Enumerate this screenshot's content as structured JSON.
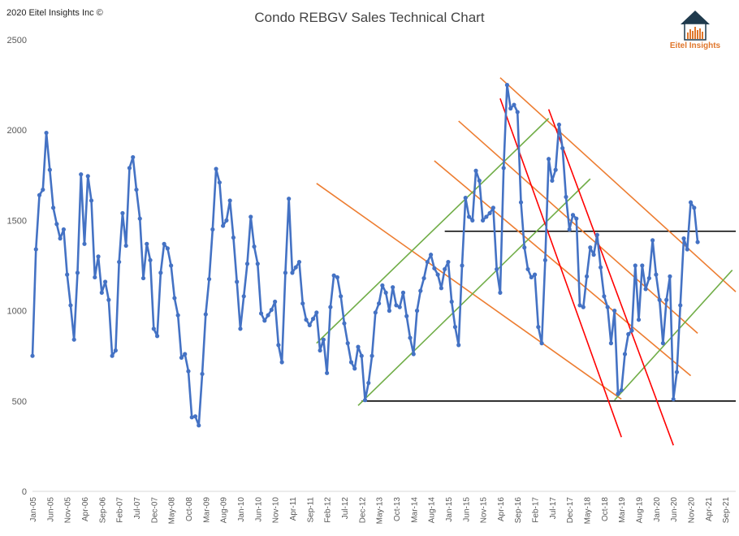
{
  "copyright": "2020 Eitel Insights Inc ©",
  "logo_text": "Eitel Insights",
  "chart_data": {
    "type": "line",
    "title": "Condo REBGV Sales Technical Chart",
    "ylim": [
      0,
      2500
    ],
    "yticks": [
      0,
      500,
      1000,
      1500,
      2000,
      2500
    ],
    "grid": false,
    "x_start": "Jan-05",
    "x_end": "Dec-21",
    "x_tick_labels": [
      "Jan-05",
      "Jun-05",
      "Nov-05",
      "Apr-06",
      "Sep-06",
      "Feb-07",
      "Jul-07",
      "Dec-07",
      "May-08",
      "Oct-08",
      "Mar-09",
      "Aug-09",
      "Jan-10",
      "Jun-10",
      "Nov-10",
      "Apr-11",
      "Sep-11",
      "Feb-12",
      "Jul-12",
      "Dec-12",
      "May-13",
      "Oct-13",
      "Mar-14",
      "Aug-14",
      "Jan-15",
      "Jun-15",
      "Nov-15",
      "Apr-16",
      "Sep-16",
      "Feb-17",
      "Jul-17",
      "Dec-17",
      "May-18",
      "Oct-18",
      "Mar-19",
      "Aug-19",
      "Jan-20",
      "Jun-20",
      "Nov-20",
      "Apr-21",
      "Sep-21"
    ],
    "series": [
      {
        "color": "#4472c4",
        "start": "Jan-05",
        "values": [
          750,
          1340,
          1640,
          1670,
          1985,
          1780,
          1570,
          1480,
          1400,
          1450,
          1200,
          1030,
          840,
          1210,
          1755,
          1370,
          1745,
          1610,
          1185,
          1300,
          1100,
          1160,
          1060,
          750,
          780,
          1270,
          1540,
          1360,
          1790,
          1850,
          1670,
          1510,
          1180,
          1370,
          1280,
          900,
          860,
          1210,
          1370,
          1345,
          1250,
          1070,
          975,
          740,
          760,
          665,
          410,
          415,
          365,
          650,
          980,
          1175,
          1450,
          1785,
          1710,
          1470,
          1500,
          1610,
          1405,
          1160,
          900,
          1080,
          1260,
          1520,
          1355,
          1260,
          985,
          945,
          975,
          1005,
          1050,
          810,
          715,
          1210,
          1620,
          1210,
          1240,
          1270,
          1040,
          950,
          920,
          955,
          990,
          780,
          840,
          655,
          1020,
          1195,
          1185,
          1080,
          930,
          820,
          715,
          680,
          800,
          750,
          505,
          600,
          750,
          990,
          1040,
          1140,
          1100,
          1000,
          1130,
          1030,
          1020,
          1100,
          970,
          850,
          760,
          1000,
          1110,
          1180,
          1270,
          1310,
          1235,
          1200,
          1125,
          1230,
          1270,
          1050,
          910,
          810,
          1250,
          1625,
          1520,
          1500,
          1775,
          1720,
          1500,
          1520,
          1540,
          1570,
          1230,
          1100,
          1790,
          2250,
          2120,
          2140,
          2100,
          1600,
          1350,
          1230,
          1185,
          1200,
          910,
          820,
          1280,
          1840,
          1720,
          1780,
          2030,
          1900,
          1630,
          1450,
          1530,
          1510,
          1030,
          1020,
          1190,
          1350,
          1310,
          1420,
          1240,
          1080,
          1020,
          820,
          1000,
          540,
          560,
          760,
          870,
          890,
          1250,
          950,
          1250,
          1120,
          1180,
          1390,
          1200,
          1060,
          820,
          1060,
          1190,
          510,
          660,
          1030,
          1400,
          1340,
          1600,
          1570,
          1380
        ]
      }
    ],
    "horizontal_lines": [
      {
        "y": 500,
        "from": "Dec-12",
        "to": "Dec-21",
        "color": "#000000"
      },
      {
        "y": 1440,
        "from": "Dec-14",
        "to": "Dec-21",
        "color": "#000000"
      }
    ],
    "trend_lines": [
      {
        "color": "#ed7d31",
        "from": [
          "Apr-16",
          2290
        ],
        "to": [
          "Dec-21",
          1105
        ]
      },
      {
        "color": "#ed7d31",
        "from": [
          "Apr-15",
          2050
        ],
        "to": [
          "Jan-21",
          875
        ]
      },
      {
        "color": "#ed7d31",
        "from": [
          "Sep-14",
          1830
        ],
        "to": [
          "Nov-20",
          640
        ]
      },
      {
        "color": "#ed7d31",
        "from": [
          "Nov-11",
          1705
        ],
        "to": [
          "Mar-19",
          510
        ]
      },
      {
        "color": "#70ad47",
        "from": [
          "Nov-11",
          820
        ],
        "to": [
          "Jun-17",
          2065
        ]
      },
      {
        "color": "#70ad47",
        "from": [
          "Nov-12",
          475
        ],
        "to": [
          "Jun-18",
          1730
        ]
      },
      {
        "color": "#70ad47",
        "from": [
          "Jan-19",
          505
        ],
        "to": [
          "Nov-21",
          1225
        ]
      },
      {
        "color": "#ff0000",
        "from": [
          "Apr-16",
          2175
        ],
        "to": [
          "Mar-19",
          300
        ]
      },
      {
        "color": "#ff0000",
        "from": [
          "Jun-17",
          2115
        ],
        "to": [
          "Jun-20",
          255
        ]
      }
    ]
  }
}
